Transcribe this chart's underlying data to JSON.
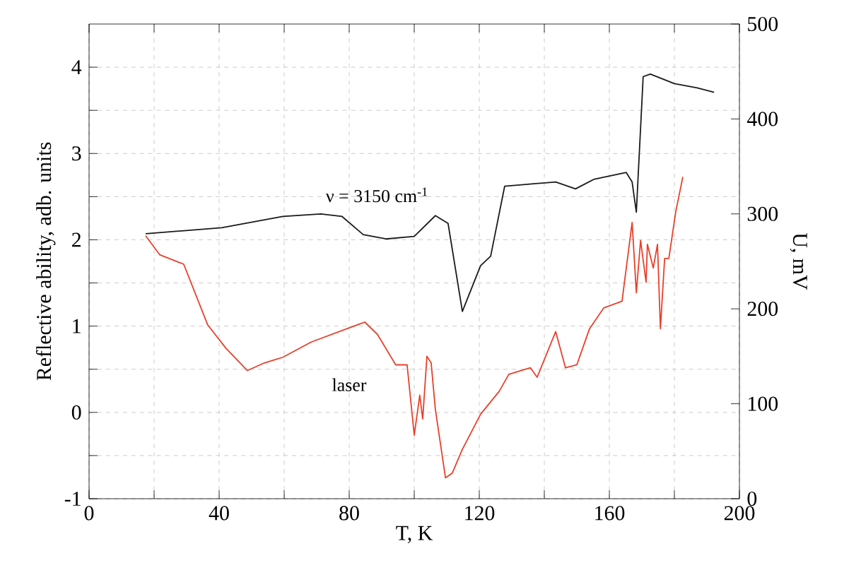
{
  "chart_data": {
    "type": "line",
    "xlabel": "T, K",
    "ylabel": "Reflective ability, adb. units",
    "y2label": "U, mV",
    "xlim": [
      0,
      200
    ],
    "xticks": [
      0,
      40,
      80,
      120,
      160,
      200
    ],
    "ylim": [
      -1,
      4.5
    ],
    "yticks": [
      -1,
      0,
      1,
      2,
      3,
      4
    ],
    "y2lim": [
      0,
      500
    ],
    "y2ticks": [
      0,
      100,
      200,
      300,
      400,
      500
    ],
    "grid": true,
    "marker": "none",
    "line_style": "solid",
    "annotations": [
      "ν = 3150 cm$^{-1}$",
      "laser"
    ],
    "series": [
      {
        "color": "#1a1a1a",
        "x": [
          17.4,
          40.8,
          59.6,
          71.3,
          77.8,
          84.3,
          91.3,
          100,
          106.5,
          110.4,
          114.8,
          120.4,
          123.5,
          127.8,
          143.5,
          149.6,
          155.2,
          165.2,
          167,
          168.3,
          170.4,
          172.6,
          180,
          187,
          192.2
        ],
        "values": [
          2.07,
          2.14,
          2.27,
          2.3,
          2.27,
          2.06,
          2.01,
          2.04,
          2.28,
          2.19,
          1.17,
          1.7,
          1.81,
          2.62,
          2.67,
          2.59,
          2.7,
          2.78,
          2.67,
          2.32,
          3.89,
          3.92,
          3.81,
          3.76,
          3.71
        ]
      },
      {
        "color": "#e8402a",
        "axis": "y2",
        "x": [
          17.4,
          21.7,
          29.1,
          36.5,
          42.2,
          48.7,
          53.9,
          59.6,
          68.3,
          80,
          84.8,
          88.7,
          94.3,
          97.8,
          100,
          101.7,
          102.6,
          103.9,
          105.2,
          106.5,
          109.6,
          111.7,
          114.8,
          120.4,
          126.1,
          129.1,
          135.7,
          137.8,
          143.5,
          146.5,
          150,
          153.9,
          158.3,
          163.9,
          167,
          168.3,
          169.6,
          171.3,
          171.7,
          173.5,
          174.8,
          175.7,
          177,
          178.3,
          180.4,
          182.6
        ],
        "values": [
          277,
          257,
          247,
          183,
          158,
          135,
          143,
          149,
          165,
          180,
          186,
          173,
          141,
          141,
          67,
          109,
          84,
          150,
          143,
          94,
          22,
          27,
          52,
          89,
          113,
          131,
          138,
          128,
          176,
          138,
          141,
          179,
          201,
          208,
          291,
          217,
          272,
          228,
          268,
          243,
          268,
          179,
          253,
          253,
          302,
          339
        ]
      }
    ]
  }
}
